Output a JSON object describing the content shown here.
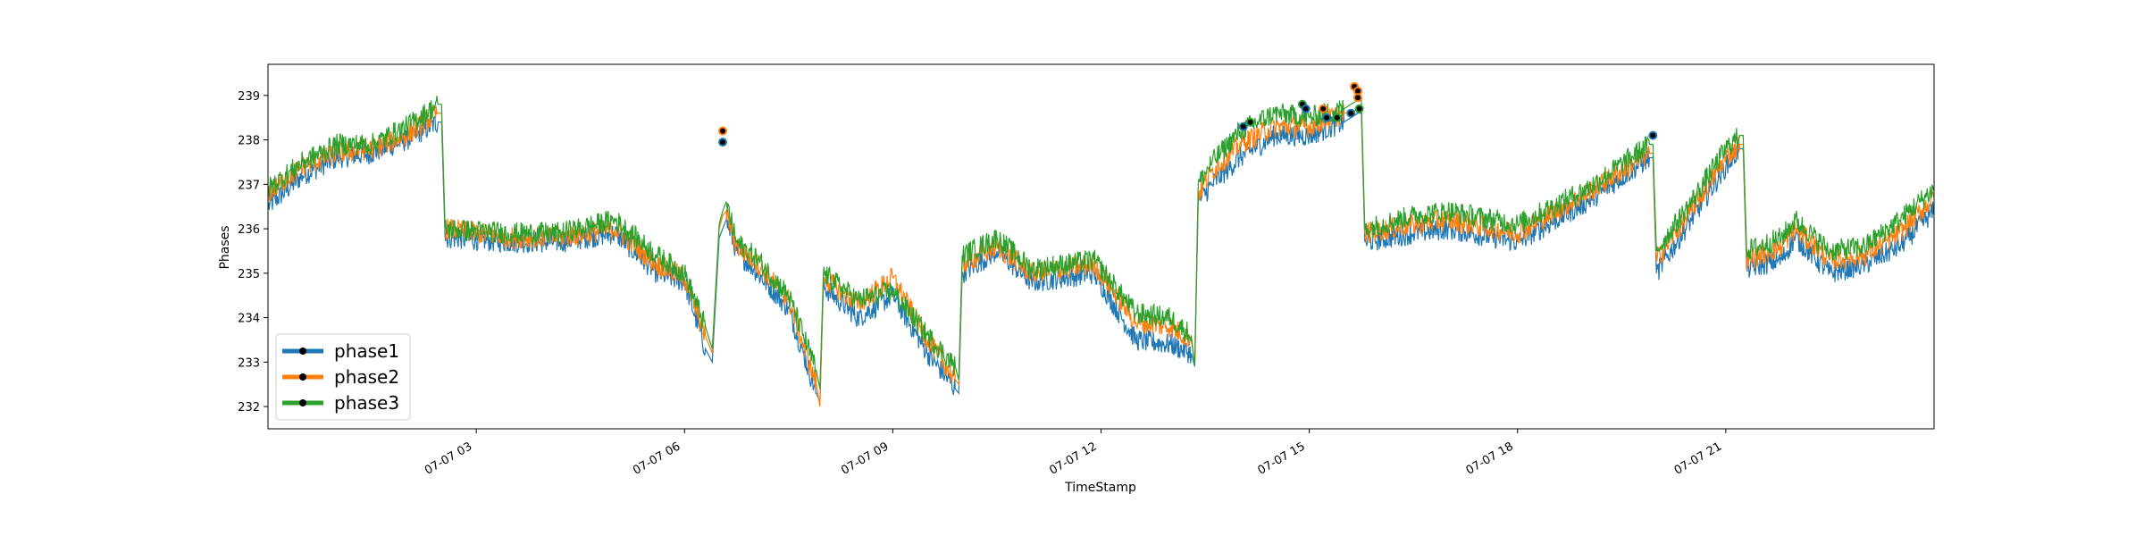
{
  "chart_data": {
    "type": "line",
    "title": "",
    "xlabel": "TimeStamp",
    "ylabel": "Phases",
    "xlim": [
      0.0,
      24.0
    ],
    "ylim": [
      231.5,
      239.7
    ],
    "grid": false,
    "legend_position": "lower-left",
    "x_ticks": [
      {
        "value": 3,
        "label": "07-07 03"
      },
      {
        "value": 6,
        "label": "07-07 06"
      },
      {
        "value": 9,
        "label": "07-07 09"
      },
      {
        "value": 12,
        "label": "07-07 12"
      },
      {
        "value": 15,
        "label": "07-07 15"
      },
      {
        "value": 18,
        "label": "07-07 18"
      },
      {
        "value": 21,
        "label": "07-07 21"
      }
    ],
    "y_ticks": [
      {
        "value": 232,
        "label": "232"
      },
      {
        "value": 233,
        "label": "233"
      },
      {
        "value": 234,
        "label": "234"
      },
      {
        "value": 235,
        "label": "235"
      },
      {
        "value": 236,
        "label": "236"
      },
      {
        "value": 237,
        "label": "237"
      },
      {
        "value": 238,
        "label": "238"
      },
      {
        "value": 239,
        "label": "239"
      }
    ],
    "x": [
      0.0,
      0.5,
      1.0,
      1.5,
      2.0,
      2.45,
      2.5,
      2.55,
      3.5,
      4.2,
      5.0,
      5.6,
      6.0,
      6.3,
      6.4,
      6.5,
      6.55,
      6.6,
      6.75,
      7.0,
      7.5,
      7.9,
      7.95,
      8.0,
      8.5,
      9.0,
      9.5,
      9.9,
      9.95,
      10.0,
      10.5,
      11.0,
      11.9,
      12.5,
      13.0,
      13.3,
      13.35,
      13.4,
      13.6,
      14.0,
      14.5,
      15.0,
      15.5,
      15.6,
      15.7,
      15.75,
      15.8,
      16.5,
      17.0,
      18.0,
      19.0,
      19.9,
      19.95,
      20.0,
      20.5,
      21.0,
      21.2,
      21.25,
      21.3,
      21.8,
      22.0,
      22.5,
      23.0,
      23.5,
      24.0
    ],
    "series": [
      {
        "name": "phase1",
        "color": "#1f77b4",
        "values": [
          236.5,
          237.2,
          237.6,
          237.7,
          238.0,
          238.4,
          238.4,
          235.8,
          235.7,
          235.7,
          235.9,
          235.0,
          234.8,
          233.3,
          233.0,
          235.8,
          236.0,
          236.2,
          235.5,
          235.1,
          234.2,
          232.3,
          232.1,
          234.7,
          234.0,
          234.5,
          233.2,
          232.4,
          232.3,
          235.0,
          235.5,
          234.8,
          235.0,
          233.5,
          233.4,
          233.2,
          232.9,
          236.6,
          237.0,
          237.6,
          238.1,
          238.1,
          238.4,
          238.5,
          238.6,
          238.6,
          235.7,
          235.9,
          236.0,
          235.7,
          236.6,
          237.6,
          237.6,
          235.0,
          236.2,
          237.4,
          237.8,
          237.8,
          235.1,
          235.3,
          235.8,
          235.0,
          235.2,
          235.6,
          236.4
        ]
      },
      {
        "name": "phase2",
        "color": "#ff7f0e",
        "values": [
          236.8,
          237.4,
          237.7,
          237.8,
          238.1,
          238.6,
          238.6,
          236.0,
          235.8,
          235.8,
          236.0,
          235.2,
          234.9,
          233.6,
          233.2,
          236.0,
          236.3,
          236.4,
          235.6,
          235.3,
          234.4,
          232.5,
          232.0,
          234.9,
          234.3,
          234.9,
          233.5,
          232.6,
          232.5,
          235.2,
          235.6,
          235.0,
          235.2,
          233.9,
          233.8,
          233.5,
          233.0,
          236.8,
          237.3,
          237.9,
          238.3,
          238.3,
          238.6,
          238.6,
          238.7,
          238.7,
          235.9,
          236.1,
          236.2,
          235.9,
          236.8,
          237.7,
          237.7,
          235.3,
          236.4,
          237.6,
          237.9,
          237.9,
          235.3,
          235.6,
          236.0,
          235.3,
          235.4,
          235.9,
          236.7
        ]
      },
      {
        "name": "phase3",
        "color": "#2ca02c",
        "values": [
          236.9,
          237.5,
          237.9,
          237.9,
          238.3,
          238.8,
          238.8,
          236.0,
          235.9,
          235.9,
          236.2,
          235.4,
          235.0,
          233.8,
          233.3,
          236.1,
          236.4,
          236.6,
          235.7,
          235.4,
          234.5,
          232.8,
          232.4,
          235.0,
          234.4,
          234.6,
          233.6,
          232.9,
          232.6,
          235.4,
          235.8,
          235.1,
          235.3,
          234.1,
          234.0,
          233.6,
          232.9,
          237.0,
          237.5,
          238.2,
          238.6,
          238.5,
          238.7,
          238.8,
          238.9,
          238.9,
          236.0,
          236.3,
          236.4,
          236.1,
          236.9,
          237.9,
          237.9,
          235.5,
          236.6,
          237.8,
          238.1,
          238.1,
          235.5,
          235.8,
          236.2,
          235.5,
          235.6,
          236.2,
          236.9
        ]
      }
    ],
    "markers": [
      {
        "x": 6.55,
        "y": 238.2,
        "series": "phase2"
      },
      {
        "x": 6.55,
        "y": 237.95,
        "series": "phase1"
      },
      {
        "x": 14.05,
        "y": 238.3,
        "series": "phase1"
      },
      {
        "x": 14.15,
        "y": 238.4,
        "series": "phase3"
      },
      {
        "x": 14.9,
        "y": 238.8,
        "series": "phase3"
      },
      {
        "x": 14.95,
        "y": 238.7,
        "series": "phase1"
      },
      {
        "x": 15.2,
        "y": 238.7,
        "series": "phase2"
      },
      {
        "x": 15.25,
        "y": 238.5,
        "series": "phase1"
      },
      {
        "x": 15.4,
        "y": 238.5,
        "series": "phase3"
      },
      {
        "x": 15.6,
        "y": 238.6,
        "series": "phase1"
      },
      {
        "x": 15.65,
        "y": 239.2,
        "series": "phase2"
      },
      {
        "x": 15.7,
        "y": 239.1,
        "series": "phase2"
      },
      {
        "x": 15.7,
        "y": 238.95,
        "series": "phase2"
      },
      {
        "x": 15.72,
        "y": 238.7,
        "series": "phase3"
      },
      {
        "x": 19.95,
        "y": 238.1,
        "series": "phase1"
      }
    ],
    "legend": [
      "phase1",
      "phase2",
      "phase3"
    ]
  }
}
